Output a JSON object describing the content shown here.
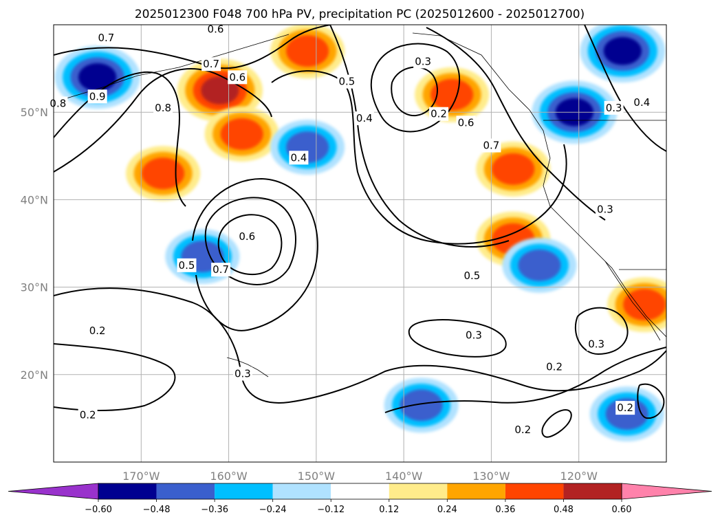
{
  "title": "2025012300 F048 700 hPa PV, precipitation PC (2025012600 - 2025012700)",
  "chart_data": {
    "type": "map-contour",
    "title": "2025012300 F048 700 hPa PV, precipitation PC (2025012600 - 2025012700)",
    "map_extent": {
      "lon": [
        -180,
        -110
      ],
      "lat": [
        10,
        60
      ]
    },
    "lon_ticks": [
      -170,
      -160,
      -150,
      -140,
      -130,
      -120
    ],
    "lon_labels": [
      "170°W",
      "160°W",
      "150°W",
      "140°W",
      "130°W",
      "120°W"
    ],
    "lat_ticks": [
      20,
      30,
      40,
      50
    ],
    "lat_labels": [
      "20°N",
      "30°N",
      "40°N",
      "50°N"
    ],
    "grid": true,
    "colorbar": {
      "extend": "both",
      "levels": [
        -0.6,
        -0.48,
        -0.36,
        -0.24,
        -0.12,
        0.12,
        0.24,
        0.36,
        0.48,
        0.6
      ],
      "labels": [
        "−0.60",
        "−0.48",
        "−0.36",
        "−0.24",
        "−0.12",
        "0.12",
        "0.24",
        "0.36",
        "0.48",
        "0.60"
      ],
      "colors": [
        "#9932cc",
        "#000090",
        "#3a5fcd",
        "#00bfff",
        "#b0e2ff",
        "#ffffff",
        "#ffec8b",
        "#ffa500",
        "#ff4500",
        "#b22222",
        "#ff82ab"
      ]
    },
    "pv_contour_labels": [
      {
        "value": "0.7",
        "lon": -174.0,
        "lat": 58.5
      },
      {
        "value": "0.6",
        "lon": -161.5,
        "lat": 59.5
      },
      {
        "value": "0.7",
        "lon": -162.0,
        "lat": 55.5
      },
      {
        "value": "0.6",
        "lon": -159.0,
        "lat": 54.0
      },
      {
        "value": "0.9",
        "lon": -175.0,
        "lat": 51.8
      },
      {
        "value": "0.8",
        "lon": -167.5,
        "lat": 50.5
      },
      {
        "value": "0.5",
        "lon": -146.5,
        "lat": 53.5
      },
      {
        "value": "0.3",
        "lon": -137.8,
        "lat": 55.8
      },
      {
        "value": "0.4",
        "lon": -144.5,
        "lat": 49.3
      },
      {
        "value": "0.2",
        "lon": -136.0,
        "lat": 49.8
      },
      {
        "value": "0.6",
        "lon": -132.9,
        "lat": 48.8
      },
      {
        "value": "0.7",
        "lon": -130.0,
        "lat": 46.2
      },
      {
        "value": "0.4",
        "lon": -152.0,
        "lat": 44.8
      },
      {
        "value": "0.6",
        "lon": -157.9,
        "lat": 35.8
      },
      {
        "value": "0.5",
        "lon": -164.8,
        "lat": 32.5
      },
      {
        "value": "0.7",
        "lon": -160.9,
        "lat": 32.0
      },
      {
        "value": "0.5",
        "lon": -132.2,
        "lat": 31.3
      },
      {
        "value": "0.3",
        "lon": -117.0,
        "lat": 38.9
      },
      {
        "value": "0.3",
        "lon": -132.0,
        "lat": 24.5
      },
      {
        "value": "0.3",
        "lon": -118.0,
        "lat": 23.5
      },
      {
        "value": "0.2",
        "lon": -122.8,
        "lat": 20.9
      },
      {
        "value": "0.2",
        "lon": -175.0,
        "lat": 25.0
      },
      {
        "value": "0.2",
        "lon": -176.1,
        "lat": 15.4
      },
      {
        "value": "0.3",
        "lon": -158.4,
        "lat": 20.1
      },
      {
        "value": "0.2",
        "lon": -126.4,
        "lat": 13.7
      },
      {
        "value": "0.2",
        "lon": -114.7,
        "lat": 16.2
      },
      {
        "value": "0.8",
        "lon": -179.5,
        "lat": 51.0
      },
      {
        "value": "0.3",
        "lon": -116.0,
        "lat": 50.5
      },
      {
        "value": "0.4",
        "lon": -112.8,
        "lat": 51.1
      }
    ],
    "precip_pc_regions": [
      {
        "lon": -167.5,
        "lat": 43.0,
        "value": 0.36
      },
      {
        "lon": -161.0,
        "lat": 52.5,
        "value": 0.48
      },
      {
        "lon": -158.5,
        "lat": 47.5,
        "value": 0.36
      },
      {
        "lon": -151.0,
        "lat": 57.0,
        "value": 0.36
      },
      {
        "lon": -134.5,
        "lat": 52.0,
        "value": 0.36
      },
      {
        "lon": -127.5,
        "lat": 43.5,
        "value": 0.36
      },
      {
        "lon": -127.5,
        "lat": 35.5,
        "value": 0.36
      },
      {
        "lon": -112.5,
        "lat": 28.0,
        "value": 0.36
      },
      {
        "lon": -175.0,
        "lat": 54.0,
        "value": -0.48
      },
      {
        "lon": -120.5,
        "lat": 50.0,
        "value": -0.48
      },
      {
        "lon": -115.0,
        "lat": 57.0,
        "value": -0.48
      },
      {
        "lon": -151.0,
        "lat": 46.0,
        "value": -0.36
      },
      {
        "lon": -163.0,
        "lat": 33.5,
        "value": -0.36
      },
      {
        "lon": -124.5,
        "lat": 32.5,
        "value": -0.36
      },
      {
        "lon": -138.0,
        "lat": 16.5,
        "value": -0.36
      },
      {
        "lon": -114.5,
        "lat": 15.5,
        "value": -0.36
      }
    ]
  }
}
